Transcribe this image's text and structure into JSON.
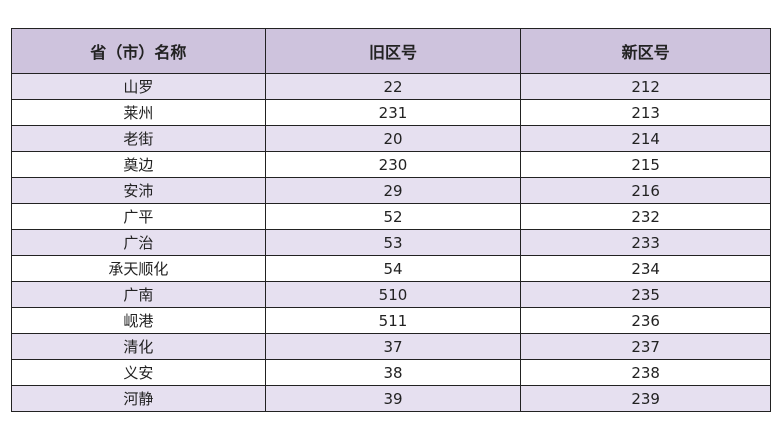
{
  "table": {
    "headers": [
      "省（市）名称",
      "旧区号",
      "新区号"
    ],
    "rows": [
      [
        "山罗",
        "22",
        "212"
      ],
      [
        "莱州",
        "231",
        "213"
      ],
      [
        "老街",
        "20",
        "214"
      ],
      [
        "奠边",
        "230",
        "215"
      ],
      [
        "安沛",
        "29",
        "216"
      ],
      [
        "广平",
        "52",
        "232"
      ],
      [
        "广治",
        "53",
        "233"
      ],
      [
        "承天顺化",
        "54",
        "234"
      ],
      [
        "广南",
        "510",
        "235"
      ],
      [
        "岘港",
        "511",
        "236"
      ],
      [
        "清化",
        "37",
        "237"
      ],
      [
        "义安",
        "38",
        "238"
      ],
      [
        "河静",
        "39",
        "239"
      ]
    ]
  },
  "colors": {
    "header_bg": "#cec3dd",
    "stripe_bg": "#e6e0f0"
  }
}
